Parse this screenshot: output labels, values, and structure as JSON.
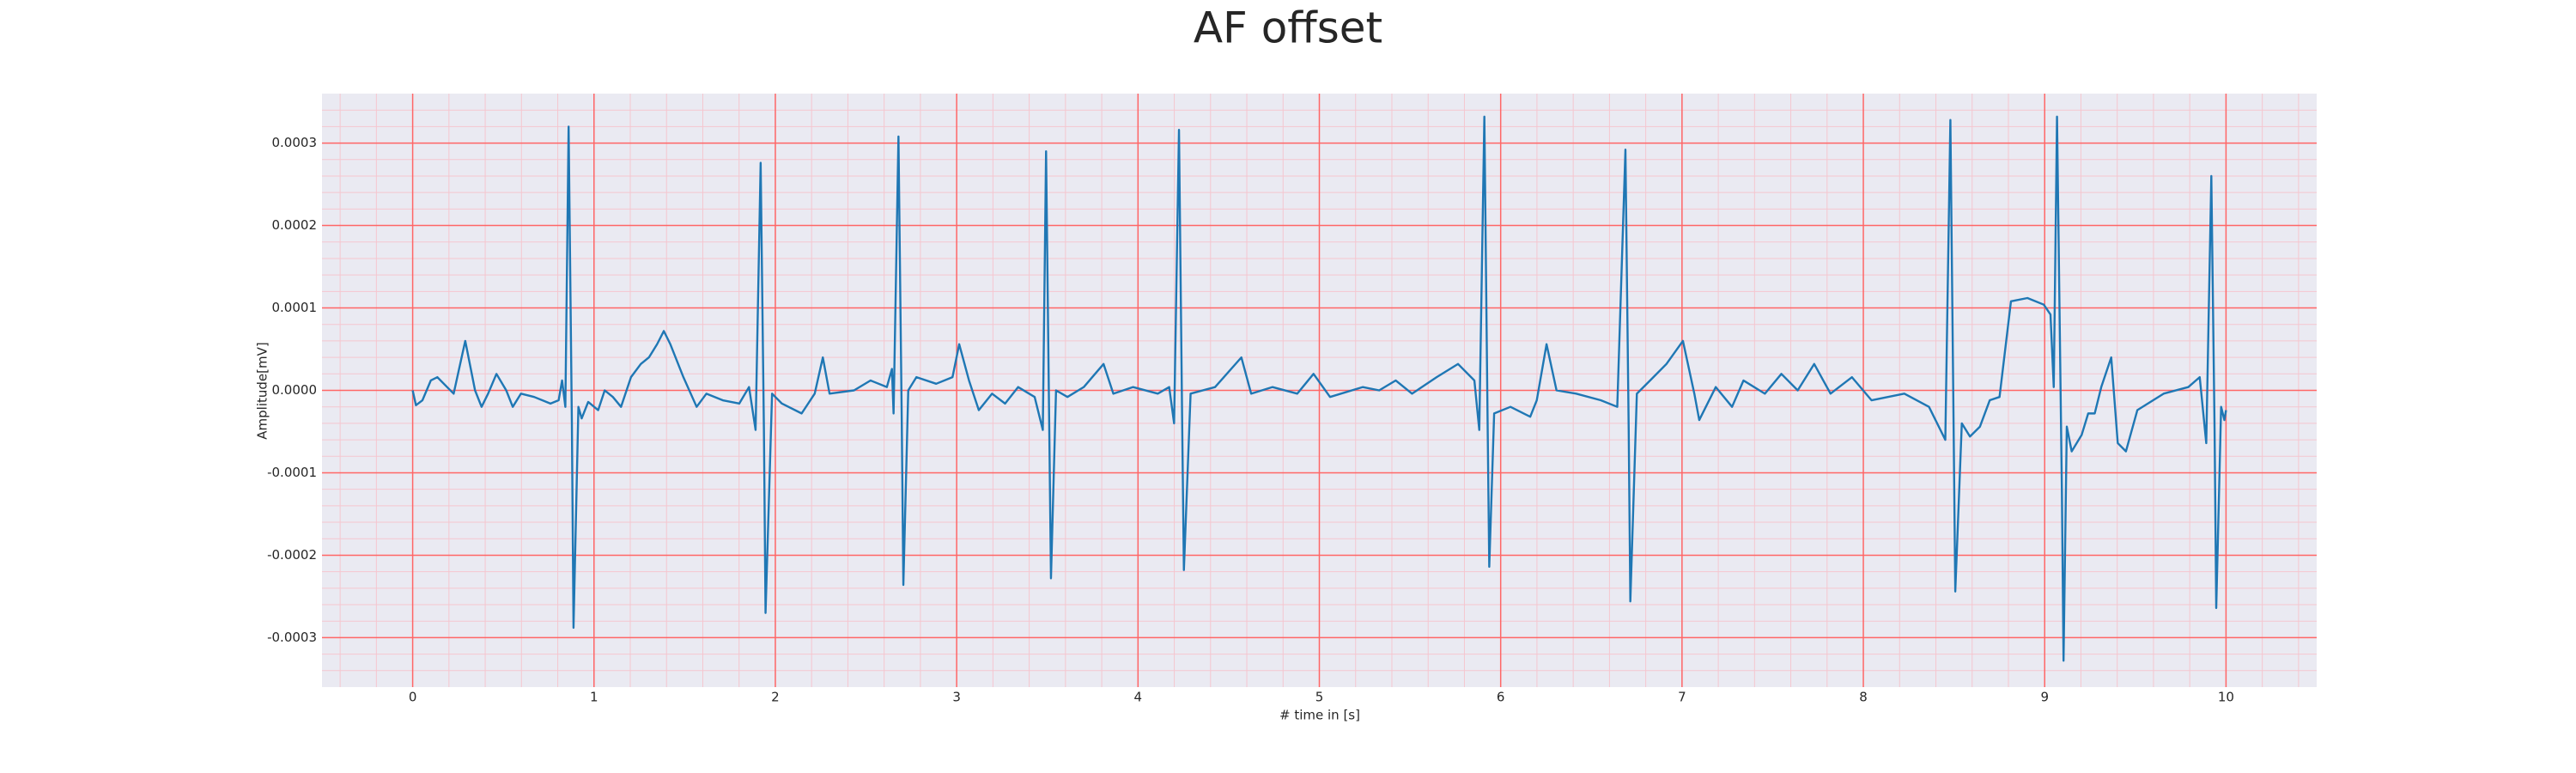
{
  "chart_data": {
    "type": "line",
    "title": "AF offset",
    "xlabel": "# time in [s]",
    "ylabel": "Amplitude[mV]",
    "color": "#1f77b4",
    "grid": true,
    "minor_grid": true,
    "background": "#eaeaf2",
    "grid_color": "#ff6666",
    "minor_grid_color": "#f5c6cf",
    "xlim": [
      -0.5,
      10.5
    ],
    "ylim": [
      -0.00036,
      0.00036
    ],
    "xticks": [
      0,
      1,
      2,
      3,
      4,
      5,
      6,
      7,
      8,
      9,
      10
    ],
    "yticks": [
      -0.0003,
      -0.0002,
      -0.0001,
      {
        "value": 0,
        "label": "0.0000"
      },
      0.0001,
      0.0002,
      0.0003
    ],
    "xminorticks": [
      -0.4,
      -0.2,
      0.2,
      0.4,
      0.6,
      0.8,
      1.2,
      1.4,
      1.6,
      1.8,
      2.2,
      2.4,
      2.6,
      2.8,
      3.2,
      3.4,
      3.6,
      3.8,
      4.2,
      4.4,
      4.6,
      4.8,
      5.2,
      5.4,
      5.6,
      5.8,
      6.2,
      6.4,
      6.6,
      6.8,
      7.2,
      7.4,
      7.6,
      7.8,
      8.2,
      8.4,
      8.6,
      8.8,
      9.2,
      9.4,
      9.6,
      9.8,
      10.2,
      10.4
    ],
    "yminorticks": [
      -0.00034,
      -0.00032,
      -0.00028,
      -0.00026,
      -0.00024,
      -0.00022,
      -0.00018,
      -0.00016,
      -0.00014,
      -0.00012,
      -8e-05,
      -6e-05,
      -4e-05,
      -2e-05,
      2e-05,
      4e-05,
      6e-05,
      8e-05,
      0.00012,
      0.00014,
      0.00016,
      0.00018,
      0.00022,
      0.00024,
      0.00026,
      0.00028,
      0.00032,
      0.00034
    ],
    "x": [
      0,
      0.018,
      0.054,
      0.1,
      0.136,
      0.19,
      0.226,
      0.29,
      0.344,
      0.38,
      0.416,
      0.462,
      0.516,
      0.552,
      0.597,
      0.67,
      0.76,
      0.805,
      0.824,
      0.842,
      0.86,
      0.878,
      0.887,
      0.914,
      0.932,
      0.968,
      1.023,
      1.059,
      1.104,
      1.149,
      1.204,
      1.258,
      1.303,
      1.348,
      1.385,
      1.421,
      1.493,
      1.566,
      1.62,
      1.71,
      1.801,
      1.855,
      1.891,
      1.919,
      1.937,
      1.946,
      1.982,
      2.036,
      2.145,
      2.217,
      2.262,
      2.299,
      2.434,
      2.525,
      2.615,
      2.643,
      2.652,
      2.679,
      2.697,
      2.706,
      2.733,
      2.778,
      2.887,
      2.977,
      3.014,
      3.068,
      3.122,
      3.195,
      3.267,
      3.339,
      3.43,
      3.475,
      3.493,
      3.511,
      3.52,
      3.548,
      3.611,
      3.701,
      3.81,
      3.864,
      3.973,
      4.109,
      4.172,
      4.199,
      4.226,
      4.244,
      4.253,
      4.29,
      4.425,
      4.57,
      4.624,
      4.742,
      4.878,
      4.968,
      5.059,
      5.24,
      5.33,
      5.421,
      5.511,
      5.647,
      5.765,
      5.855,
      5.882,
      5.91,
      5.928,
      5.937,
      5.964,
      6.054,
      6.163,
      6.199,
      6.253,
      6.308,
      6.416,
      6.552,
      6.643,
      6.688,
      6.706,
      6.715,
      6.751,
      6.824,
      6.914,
      7.005,
      7.068,
      7.095,
      7.186,
      7.276,
      7.339,
      7.457,
      7.548,
      7.638,
      7.729,
      7.819,
      7.937,
      8.045,
      8.226,
      8.362,
      8.452,
      8.48,
      8.498,
      8.507,
      8.543,
      8.588,
      8.643,
      8.697,
      8.751,
      8.814,
      8.905,
      8.995,
      9.032,
      9.05,
      9.068,
      9.095,
      9.104,
      9.122,
      9.149,
      9.204,
      9.24,
      9.276,
      9.312,
      9.367,
      9.403,
      9.448,
      9.511,
      9.656,
      9.792,
      9.855,
      9.891,
      9.919,
      9.937,
      9.946,
      9.973,
      9.991,
      10.0
    ],
    "values": [
      0,
      -1.8e-05,
      -1.2e-05,
      1.2e-05,
      1.6e-05,
      4e-06,
      -4e-06,
      6e-05,
      0,
      -2e-05,
      -4e-06,
      2e-05,
      0,
      -2e-05,
      -4e-06,
      -8e-06,
      -1.6e-05,
      -1.2e-05,
      1.2e-05,
      -2e-05,
      0.00032,
      -4e-05,
      -0.000288,
      -2e-05,
      -3.4e-05,
      -1.4e-05,
      -2.4e-05,
      0,
      -8e-06,
      -2e-05,
      1.6e-05,
      3.2e-05,
      4e-05,
      5.6e-05,
      7.2e-05,
      5.6e-05,
      1.6e-05,
      -2e-05,
      -4e-06,
      -1.2e-05,
      -1.6e-05,
      4e-06,
      -4.8e-05,
      0.000276,
      -4.8e-05,
      -0.00027,
      -4e-06,
      -1.6e-05,
      -2.8e-05,
      -4e-06,
      4e-05,
      -4e-06,
      0,
      1.2e-05,
      4e-06,
      2.6e-05,
      -2.8e-05,
      0.000308,
      -3.4e-05,
      -0.000236,
      0,
      1.6e-05,
      8e-06,
      1.6e-05,
      5.6e-05,
      1.2e-05,
      -2.4e-05,
      -4e-06,
      -1.6e-05,
      4e-06,
      -8e-06,
      -4.8e-05,
      0.00029,
      -5.4e-05,
      -0.000228,
      0,
      -8e-06,
      4e-06,
      3.2e-05,
      -4e-06,
      4e-06,
      -4e-06,
      4e-06,
      -4e-05,
      0.000316,
      -4.8e-05,
      -0.000218,
      -4e-06,
      4e-06,
      4e-05,
      -4e-06,
      4e-06,
      -4e-06,
      2e-05,
      -8e-06,
      4e-06,
      0,
      1.2e-05,
      -4e-06,
      1.6e-05,
      3.2e-05,
      1.2e-05,
      -4.8e-05,
      0.000332,
      -4e-05,
      -0.000214,
      -2.8e-05,
      -2e-05,
      -3.2e-05,
      -1.2e-05,
      5.6e-05,
      0,
      -4e-06,
      -1.2e-05,
      -2e-05,
      0.000292,
      -4.8e-05,
      -0.000256,
      -4e-06,
      1.2e-05,
      3.2e-05,
      6e-05,
      -4e-06,
      -3.6e-05,
      4e-06,
      -2e-05,
      1.2e-05,
      -4e-06,
      2e-05,
      0,
      3.2e-05,
      -4e-06,
      1.6e-05,
      -1.2e-05,
      -4e-06,
      -2e-05,
      -6e-05,
      0.000328,
      -4.8e-05,
      -0.000244,
      -4e-05,
      -5.6e-05,
      -4.4e-05,
      -1.2e-05,
      -8e-06,
      0.000108,
      0.000112,
      0.000104,
      9.2e-05,
      4e-06,
      0.000332,
      -0.000124,
      -0.000328,
      -4.4e-05,
      -7.4e-05,
      -5.4e-05,
      -2.8e-05,
      -2.8e-05,
      4e-06,
      4e-05,
      -6.4e-05,
      -7.4e-05,
      -2.4e-05,
      -4e-06,
      4e-06,
      1.6e-05,
      -6.4e-05,
      0.00026,
      -4.8e-05,
      -0.000264,
      -2e-05,
      -3.6e-05,
      -2.4e-05
    ]
  }
}
